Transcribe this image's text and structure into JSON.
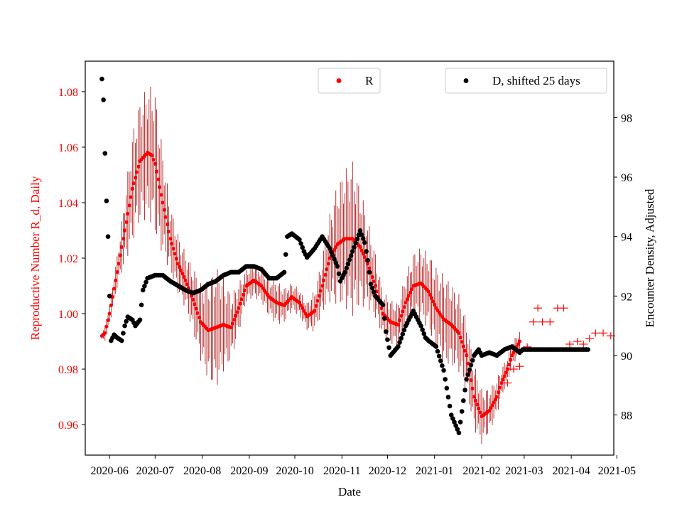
{
  "chart_data": {
    "type": "scatter",
    "title": "",
    "xlabel": "Date",
    "ylabel": "Reproductive Number R_d, Daily",
    "y2label": "Encounter Density, Adjusted",
    "x_tick_labels": [
      "2020-06",
      "2020-07",
      "2020-08",
      "2020-09",
      "2020-10",
      "2020-11",
      "2020-12",
      "2021-01",
      "2021-02",
      "2021-03",
      "2021-04",
      "2021-05"
    ],
    "x_tick_days": [
      0,
      30,
      61,
      92,
      122,
      153,
      183,
      214,
      245,
      273,
      304,
      334
    ],
    "xlim_days": [
      -16,
      332
    ],
    "ylim": [
      0.949,
      1.091
    ],
    "y_ticks": [
      0.96,
      0.98,
      1.0,
      1.02,
      1.04,
      1.06,
      1.08
    ],
    "y_tick_labels": [
      "0.96",
      "0.98",
      "1.00",
      "1.02",
      "1.04",
      "1.06",
      "1.08"
    ],
    "y2lim": [
      86.65,
      99.9
    ],
    "y2_ticks": [
      88,
      90,
      92,
      94,
      96,
      98
    ],
    "y2_tick_labels": [
      "88",
      "90",
      "92",
      "94",
      "96",
      "98"
    ],
    "colors": {
      "R": "#ff0000",
      "R_err": "#aa0000",
      "D": "#000000",
      "right_axis": "#000000",
      "left_axis": "#ff0000"
    },
    "legend": [
      {
        "label": "R",
        "color": "#ff0000",
        "location": "upper-center"
      },
      {
        "label": "D, shifted 25 days",
        "color": "#000000",
        "location": "upper-right"
      }
    ],
    "series": [
      {
        "name": "R",
        "axis": "left",
        "day_range": [
          -5,
          315
        ],
        "knots_days": [
          -5,
          -3,
          0,
          5,
          10,
          15,
          20,
          25,
          28,
          30,
          35,
          40,
          45,
          50,
          55,
          60,
          65,
          70,
          75,
          80,
          85,
          90,
          95,
          100,
          105,
          110,
          115,
          120,
          125,
          130,
          135,
          140,
          145,
          150,
          155,
          160,
          165,
          170,
          175,
          180,
          185,
          190,
          195,
          200,
          205,
          210,
          215,
          220,
          225,
          230,
          235,
          240,
          245,
          250,
          255,
          258,
          262,
          265,
          270
        ],
        "knots_values": [
          0.992,
          0.993,
          1.0,
          1.015,
          1.03,
          1.045,
          1.055,
          1.058,
          1.057,
          1.054,
          1.04,
          1.027,
          1.018,
          1.012,
          1.005,
          0.997,
          0.994,
          0.995,
          0.996,
          0.995,
          1.002,
          1.01,
          1.012,
          1.01,
          1.006,
          1.004,
          1.003,
          1.006,
          1.004,
          0.999,
          1.001,
          1.01,
          1.02,
          1.025,
          1.027,
          1.027,
          1.024,
          1.018,
          1.01,
          1.0,
          0.997,
          0.996,
          1.004,
          1.01,
          1.011,
          1.008,
          1.002,
          0.998,
          0.996,
          0.993,
          0.985,
          0.97,
          0.963,
          0.965,
          0.97,
          0.975,
          0.98,
          0.985,
          0.99
        ],
        "error_halfwidth_days": [
          -5,
          5,
          10,
          15,
          20,
          25,
          30,
          40,
          50,
          60,
          70,
          80,
          90,
          100,
          110,
          120,
          130,
          140,
          150,
          160,
          170,
          180,
          190,
          200,
          210,
          220,
          230,
          240,
          250,
          260,
          270
        ],
        "error_halfwidth_values": [
          0.002,
          0.006,
          0.012,
          0.02,
          0.022,
          0.024,
          0.026,
          0.012,
          0.01,
          0.014,
          0.022,
          0.012,
          0.006,
          0.006,
          0.008,
          0.005,
          0.005,
          0.01,
          0.022,
          0.028,
          0.016,
          0.008,
          0.008,
          0.012,
          0.014,
          0.016,
          0.014,
          0.012,
          0.008,
          0.005,
          0.004
        ],
        "plus_markers": [
          {
            "day": 262,
            "value": 0.975
          },
          {
            "day": 266,
            "value": 0.98
          },
          {
            "day": 270,
            "value": 0.981
          },
          {
            "day": 275,
            "value": 0.988
          },
          {
            "day": 279,
            "value": 0.997
          },
          {
            "day": 282,
            "value": 1.002
          },
          {
            "day": 285,
            "value": 0.997
          },
          {
            "day": 290,
            "value": 0.997
          },
          {
            "day": 295,
            "value": 1.002
          },
          {
            "day": 299,
            "value": 1.002
          },
          {
            "day": 303,
            "value": 0.989
          },
          {
            "day": 308,
            "value": 0.99
          },
          {
            "day": 312,
            "value": 0.989
          },
          {
            "day": 316,
            "value": 0.991
          },
          {
            "day": 320,
            "value": 0.993
          },
          {
            "day": 325,
            "value": 0.993
          },
          {
            "day": 330,
            "value": 0.992
          }
        ]
      },
      {
        "name": "D, shifted 25 days",
        "axis": "right",
        "day_range": [
          -5,
          315
        ],
        "knots_days": [
          -5,
          -4,
          -3,
          -2,
          -1,
          0,
          1,
          3,
          5,
          8,
          10,
          12,
          15,
          17,
          20,
          22,
          25,
          30,
          35,
          40,
          50,
          55,
          60,
          65,
          70,
          75,
          80,
          85,
          90,
          95,
          100,
          105,
          110,
          115,
          117,
          120,
          125,
          128,
          130,
          135,
          140,
          145,
          150,
          152,
          155,
          160,
          165,
          168,
          170,
          172,
          175,
          180,
          182,
          185,
          190,
          195,
          200,
          202,
          205,
          208,
          210,
          215,
          220,
          225,
          230,
          235,
          240,
          243,
          245,
          250,
          255,
          260,
          265,
          270,
          272,
          275,
          280
        ],
        "knots_values": [
          99.3,
          98.6,
          96.8,
          95.2,
          94.0,
          92.0,
          90.5,
          90.7,
          90.6,
          90.5,
          91.0,
          91.3,
          91.2,
          91.0,
          91.2,
          92.2,
          92.6,
          92.7,
          92.7,
          92.5,
          92.2,
          92.1,
          92.2,
          92.4,
          92.5,
          92.7,
          92.8,
          92.8,
          93.0,
          93.0,
          92.9,
          92.6,
          92.6,
          92.8,
          94.0,
          94.1,
          93.9,
          93.5,
          93.3,
          93.6,
          94.0,
          93.6,
          93.0,
          92.5,
          92.8,
          93.5,
          94.2,
          93.8,
          93.2,
          92.4,
          92.0,
          91.7,
          90.8,
          90.0,
          90.3,
          91.0,
          91.5,
          91.3,
          91.0,
          90.6,
          90.5,
          90.3,
          89.5,
          88.0,
          87.4,
          89.2,
          90.0,
          90.2,
          90.0,
          90.1,
          90.0,
          90.2,
          90.3,
          90.1,
          90.2,
          90.2,
          90.2
        ]
      }
    ]
  }
}
